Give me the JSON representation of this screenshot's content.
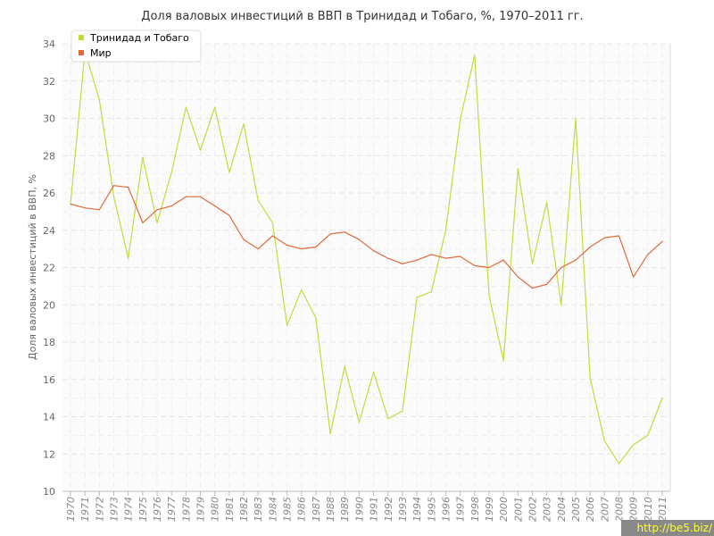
{
  "chart_data": {
    "type": "line",
    "title": "Доля валовых инвестиций в ВВП в Тринидад и Тобаго, %, 1970–2011 гг.",
    "ylabel": "Доля валовых инвестиций в ВВП, %",
    "xlabel": "",
    "ylim": [
      10,
      34
    ],
    "yticks": [
      10,
      12,
      14,
      16,
      18,
      20,
      22,
      24,
      26,
      28,
      30,
      32,
      34
    ],
    "grid": true,
    "legend_position": "top-left",
    "x": [
      "1970",
      "1971",
      "1972",
      "1973",
      "1974",
      "1975",
      "1976",
      "1977",
      "1978",
      "1979",
      "1980",
      "1981",
      "1982",
      "1983",
      "1984",
      "1985",
      "1986",
      "1987",
      "1988",
      "1989",
      "1990",
      "1991",
      "1992",
      "1993",
      "1994",
      "1995",
      "1996",
      "1997",
      "1998",
      "1999",
      "2000",
      "2001",
      "2002",
      "2003",
      "2004",
      "2005",
      "2006",
      "2007",
      "2008",
      "2009",
      "2010",
      "2011"
    ],
    "series": [
      {
        "name": "Тринидад и Тобаго",
        "color": "#c3dc3c",
        "values": [
          25.4,
          33.6,
          31.0,
          25.8,
          22.5,
          27.9,
          24.4,
          27.1,
          30.6,
          28.3,
          30.6,
          27.1,
          29.7,
          25.6,
          24.4,
          18.9,
          20.8,
          19.3,
          13.1,
          16.7,
          13.7,
          16.4,
          13.9,
          14.3,
          20.4,
          20.7,
          24.0,
          29.9,
          33.4,
          20.5,
          17.0,
          27.3,
          22.2,
          25.5,
          20.0,
          30.0,
          16.1,
          12.7,
          11.5,
          12.5,
          13.0,
          15.0
        ]
      },
      {
        "name": "Мир",
        "color": "#e06a3c",
        "values": [
          25.4,
          25.2,
          25.1,
          26.4,
          26.3,
          24.4,
          25.1,
          25.3,
          25.8,
          25.8,
          25.3,
          24.8,
          23.5,
          23.0,
          23.7,
          23.2,
          23.0,
          23.1,
          23.8,
          23.9,
          23.5,
          22.9,
          22.5,
          22.2,
          22.4,
          22.7,
          22.5,
          22.6,
          22.1,
          22.0,
          22.4,
          21.5,
          20.9,
          21.1,
          22.0,
          22.4,
          23.1,
          23.6,
          23.7,
          21.5,
          22.7,
          23.4
        ]
      }
    ]
  },
  "watermark": "http://be5.biz/"
}
